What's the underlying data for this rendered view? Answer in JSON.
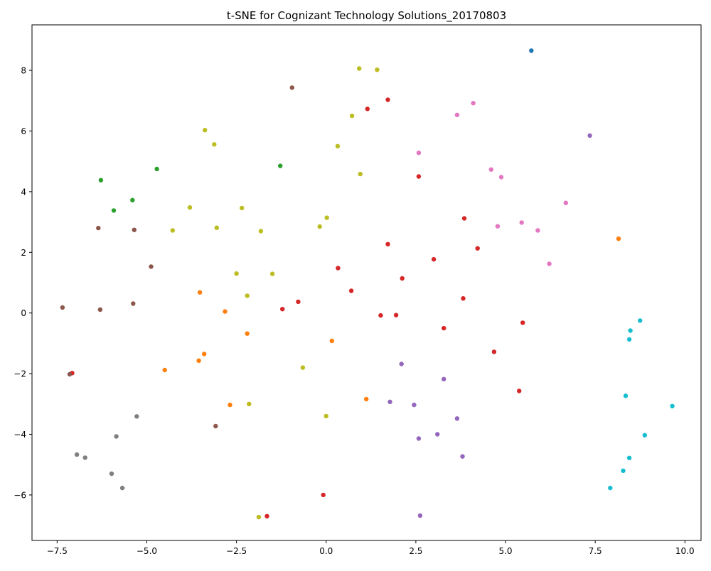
{
  "chart_data": {
    "type": "scatter",
    "title": "t-SNE for Cognizant Technology Solutions_20170803",
    "xlabel": "",
    "ylabel": "",
    "xlim": [
      -8.2,
      10.45
    ],
    "ylim": [
      -7.5,
      9.5
    ],
    "xticks": [
      -7.5,
      -5.0,
      -2.5,
      0.0,
      2.5,
      5.0,
      7.5,
      10.0
    ],
    "xtick_labels": [
      "−7.5",
      "−5.0",
      "−2.5",
      "0.0",
      "2.5",
      "5.0",
      "7.5",
      "10.0"
    ],
    "yticks": [
      -6,
      -4,
      -2,
      0,
      2,
      4,
      6,
      8
    ],
    "ytick_labels": [
      "−6",
      "−4",
      "−2",
      "0",
      "2",
      "4",
      "6",
      "8"
    ],
    "grid": false,
    "series": [
      {
        "color": "#1f77b4",
        "points": [
          [
            5.72,
            8.65
          ]
        ]
      },
      {
        "color": "#ff7f0e",
        "points": [
          [
            8.15,
            2.45
          ],
          [
            -3.52,
            0.68
          ],
          [
            -2.82,
            0.05
          ],
          [
            -2.2,
            -0.68
          ],
          [
            0.16,
            -0.92
          ],
          [
            -3.4,
            -1.35
          ],
          [
            -3.55,
            -1.57
          ],
          [
            -4.5,
            -1.88
          ],
          [
            -2.68,
            -3.03
          ],
          [
            1.12,
            -2.84
          ]
        ]
      },
      {
        "color": "#2ca02c",
        "points": [
          [
            -4.72,
            4.75
          ],
          [
            -1.28,
            4.85
          ],
          [
            -6.28,
            4.38
          ],
          [
            -5.4,
            3.72
          ],
          [
            -5.92,
            3.38
          ]
        ]
      },
      {
        "color": "#d62728",
        "points": [
          [
            1.72,
            7.03
          ],
          [
            1.15,
            6.73
          ],
          [
            2.58,
            4.5
          ],
          [
            3.85,
            3.12
          ],
          [
            1.72,
            2.27
          ],
          [
            4.22,
            2.13
          ],
          [
            3.0,
            1.77
          ],
          [
            0.33,
            1.48
          ],
          [
            2.12,
            1.14
          ],
          [
            0.7,
            0.73
          ],
          [
            3.82,
            0.48
          ],
          [
            -0.78,
            0.37
          ],
          [
            -1.22,
            0.13
          ],
          [
            1.52,
            -0.08
          ],
          [
            1.95,
            -0.07
          ],
          [
            5.48,
            -0.32
          ],
          [
            3.28,
            -0.5
          ],
          [
            4.68,
            -1.28
          ],
          [
            -7.08,
            -1.98
          ],
          [
            5.38,
            -2.57
          ],
          [
            -0.08,
            -6.0
          ],
          [
            -1.65,
            -6.7
          ]
        ]
      },
      {
        "color": "#9467bd",
        "points": [
          [
            7.35,
            5.85
          ],
          [
            2.1,
            -1.68
          ],
          [
            3.28,
            -2.18
          ],
          [
            1.78,
            -2.93
          ],
          [
            2.45,
            -3.03
          ],
          [
            3.65,
            -3.48
          ],
          [
            3.1,
            -4.0
          ],
          [
            2.58,
            -4.14
          ],
          [
            3.8,
            -4.73
          ],
          [
            2.62,
            -6.68
          ]
        ]
      },
      {
        "color": "#8c564b",
        "points": [
          [
            -0.95,
            7.43
          ],
          [
            -6.35,
            2.8
          ],
          [
            -5.35,
            2.74
          ],
          [
            -4.88,
            1.53
          ],
          [
            -7.35,
            0.18
          ],
          [
            -6.3,
            0.11
          ],
          [
            -5.38,
            0.31
          ],
          [
            -7.15,
            -2.02
          ],
          [
            -3.08,
            -3.73
          ]
        ]
      },
      {
        "color": "#e377c2",
        "points": [
          [
            4.1,
            6.92
          ],
          [
            3.65,
            6.53
          ],
          [
            2.58,
            5.28
          ],
          [
            4.6,
            4.73
          ],
          [
            4.88,
            4.48
          ],
          [
            6.68,
            3.63
          ],
          [
            5.45,
            2.98
          ],
          [
            4.78,
            2.86
          ],
          [
            5.9,
            2.72
          ],
          [
            6.22,
            1.62
          ]
        ]
      },
      {
        "color": "#7f7f7f",
        "points": [
          [
            -5.28,
            -3.41
          ],
          [
            -5.85,
            -4.07
          ],
          [
            -6.95,
            -4.67
          ],
          [
            -6.72,
            -4.77
          ],
          [
            -5.98,
            -5.3
          ],
          [
            -5.68,
            -5.77
          ]
        ]
      },
      {
        "color": "#bcbd22",
        "points": [
          [
            0.92,
            8.06
          ],
          [
            1.42,
            8.02
          ],
          [
            0.72,
            6.5
          ],
          [
            -3.38,
            6.03
          ],
          [
            -3.12,
            5.56
          ],
          [
            0.32,
            5.5
          ],
          [
            0.95,
            4.58
          ],
          [
            -3.8,
            3.48
          ],
          [
            -2.35,
            3.46
          ],
          [
            0.02,
            3.14
          ],
          [
            -0.18,
            2.85
          ],
          [
            -3.05,
            2.81
          ],
          [
            -4.28,
            2.72
          ],
          [
            -1.82,
            2.7
          ],
          [
            -2.5,
            1.3
          ],
          [
            -1.5,
            1.29
          ],
          [
            -2.2,
            0.57
          ],
          [
            -0.65,
            -1.8
          ],
          [
            -2.15,
            -3.0
          ],
          [
            0.0,
            -3.4
          ],
          [
            -1.88,
            -6.73
          ]
        ]
      },
      {
        "color": "#17becf",
        "points": [
          [
            8.75,
            -0.25
          ],
          [
            8.48,
            -0.58
          ],
          [
            8.45,
            -0.87
          ],
          [
            8.35,
            -2.73
          ],
          [
            9.65,
            -3.07
          ],
          [
            8.88,
            -4.03
          ],
          [
            8.45,
            -4.78
          ],
          [
            8.28,
            -5.2
          ],
          [
            7.92,
            -5.77
          ]
        ]
      }
    ]
  }
}
